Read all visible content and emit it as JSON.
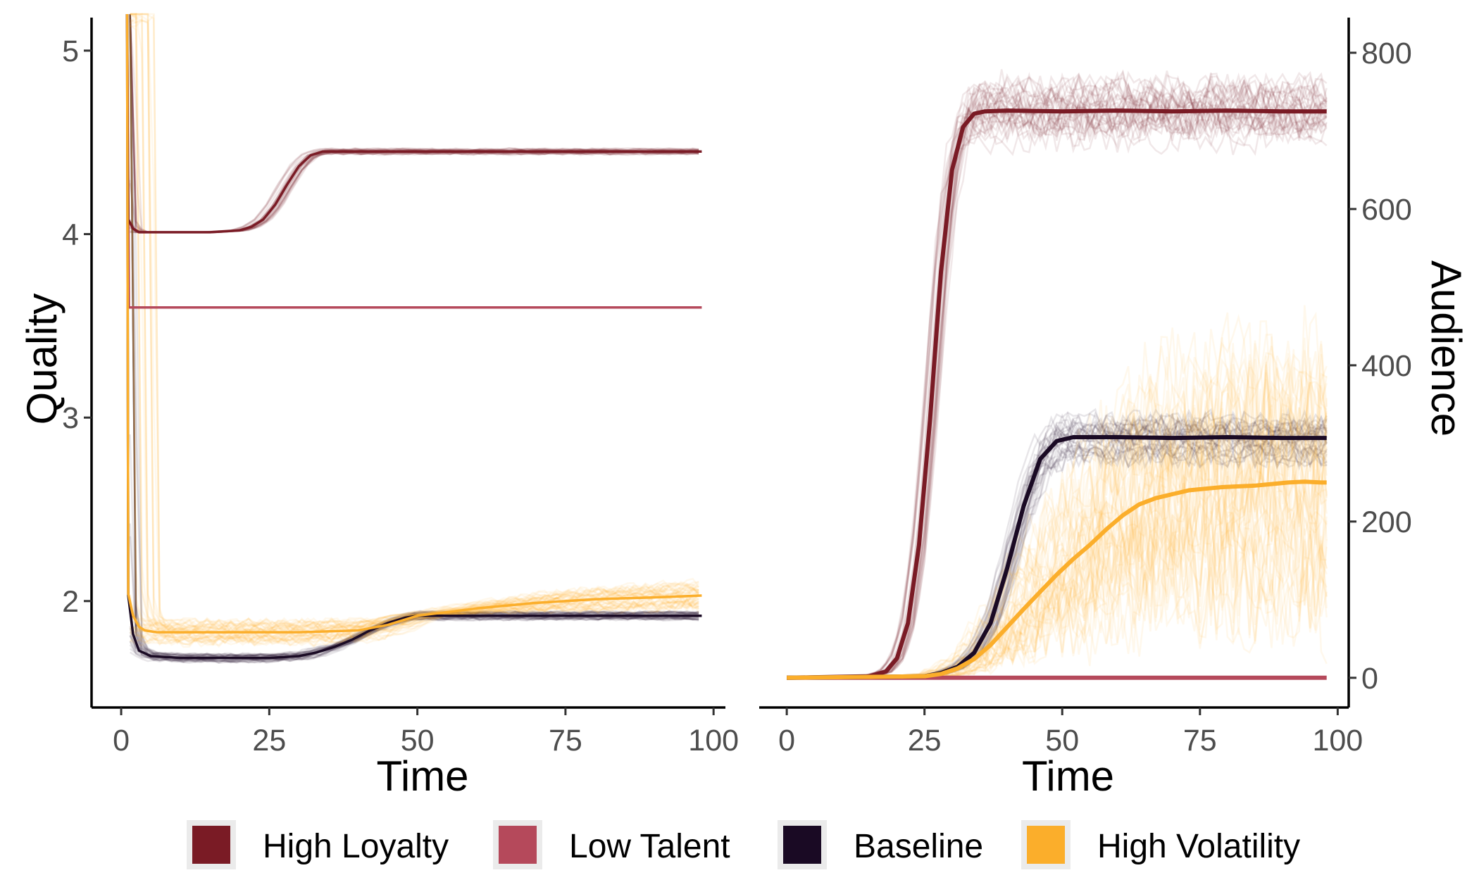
{
  "chart_data": [
    {
      "type": "line",
      "panel": "left",
      "xlabel": "Time",
      "ylabel": "Quality",
      "xlim": [
        -5,
        102
      ],
      "ylim": [
        1.42,
        5.18
      ],
      "xticks": [
        0,
        25,
        50,
        75,
        100
      ],
      "xtick_labels": [
        "0",
        "25",
        "50",
        "75",
        "100"
      ],
      "yticks": [
        2,
        3,
        4,
        5
      ],
      "ytick_labels": [
        "2",
        "3",
        "4",
        "5"
      ],
      "y_axis_side": "left",
      "grid": false,
      "series": [
        {
          "name": "Low Talent",
          "color": "#B5495B",
          "x": [
            1,
            1.3,
            98
          ],
          "y": [
            5.2,
            3.6,
            3.6
          ]
        },
        {
          "name": "High Loyalty",
          "color": "#7A1B25",
          "x": [
            1,
            1.2,
            2,
            3,
            5,
            10,
            15,
            20,
            22,
            24,
            26,
            28,
            30,
            32,
            34,
            40,
            50,
            60,
            70,
            80,
            90,
            98
          ],
          "y": [
            5.2,
            4.08,
            4.03,
            4.01,
            4.01,
            4.01,
            4.01,
            4.02,
            4.04,
            4.08,
            4.16,
            4.27,
            4.37,
            4.43,
            4.45,
            4.45,
            4.45,
            4.45,
            4.45,
            4.45,
            4.45,
            4.45
          ]
        },
        {
          "name": "Baseline",
          "color": "#1A0A24",
          "x": [
            1,
            1.2,
            2,
            3,
            5,
            10,
            20,
            25,
            30,
            33,
            36,
            39,
            42,
            45,
            48,
            50,
            60,
            70,
            80,
            90,
            98
          ],
          "y": [
            5.2,
            2.03,
            1.82,
            1.73,
            1.7,
            1.69,
            1.69,
            1.69,
            1.7,
            1.72,
            1.75,
            1.79,
            1.84,
            1.88,
            1.91,
            1.92,
            1.92,
            1.92,
            1.92,
            1.92,
            1.92
          ]
        },
        {
          "name": "High Volatility",
          "color": "#FBAE2B",
          "x": [
            1,
            1.2,
            2,
            3,
            4,
            6,
            10,
            20,
            30,
            40,
            45,
            50,
            60,
            70,
            80,
            90,
            98
          ],
          "y": [
            5.2,
            2.04,
            1.92,
            1.86,
            1.84,
            1.83,
            1.83,
            1.83,
            1.83,
            1.84,
            1.87,
            1.92,
            1.96,
            1.99,
            2.01,
            2.02,
            2.03
          ]
        }
      ]
    },
    {
      "type": "line",
      "panel": "right",
      "xlabel": "Time",
      "ylabel": "Audience",
      "xlim": [
        -5,
        102
      ],
      "ylim": [
        -38,
        845
      ],
      "xticks": [
        0,
        25,
        50,
        75,
        100
      ],
      "xtick_labels": [
        "0",
        "25",
        "50",
        "75",
        "100"
      ],
      "yticks": [
        0,
        200,
        400,
        600,
        800
      ],
      "ytick_labels": [
        "0",
        "200",
        "400",
        "600",
        "800"
      ],
      "y_axis_side": "right",
      "grid": false,
      "series": [
        {
          "name": "Low Talent",
          "color": "#B5495B",
          "x": [
            0,
            98
          ],
          "y": [
            0,
            0
          ]
        },
        {
          "name": "High Loyalty",
          "color": "#7A1B25",
          "x": [
            0,
            15,
            18,
            20,
            22,
            24,
            26,
            28,
            30,
            32,
            34,
            36,
            40,
            50,
            60,
            70,
            80,
            90,
            98
          ],
          "y": [
            0,
            2,
            8,
            25,
            70,
            170,
            330,
            520,
            650,
            705,
            722,
            725,
            726,
            725,
            726,
            725,
            726,
            725,
            725
          ]
        },
        {
          "name": "Baseline",
          "color": "#1A0A24",
          "x": [
            0,
            25,
            28,
            31,
            34,
            37,
            40,
            43,
            46,
            49,
            52,
            55,
            60,
            70,
            80,
            90,
            98
          ],
          "y": [
            0,
            2,
            6,
            14,
            32,
            70,
            140,
            220,
            280,
            303,
            308,
            308,
            308,
            307,
            308,
            307,
            307
          ]
        },
        {
          "name": "High Volatility",
          "color": "#FBAE2B",
          "x": [
            0,
            25,
            28,
            31,
            34,
            37,
            40,
            43,
            46,
            49,
            52,
            55,
            58,
            61,
            64,
            67,
            70,
            73,
            76,
            79,
            82,
            85,
            88,
            91,
            94,
            97,
            98
          ],
          "y": [
            0,
            2,
            5,
            12,
            24,
            42,
            65,
            88,
            110,
            132,
            152,
            170,
            190,
            208,
            222,
            230,
            235,
            240,
            242,
            244,
            245,
            246,
            248,
            250,
            251,
            250,
            250
          ]
        }
      ]
    }
  ],
  "legend": {
    "position": "bottom",
    "items": [
      {
        "label": "High Loyalty",
        "color": "#7A1B25"
      },
      {
        "label": "Low Talent",
        "color": "#B5495B"
      },
      {
        "label": "Baseline",
        "color": "#1A0A24"
      },
      {
        "label": "High Volatility",
        "color": "#FBAE2B"
      }
    ]
  }
}
